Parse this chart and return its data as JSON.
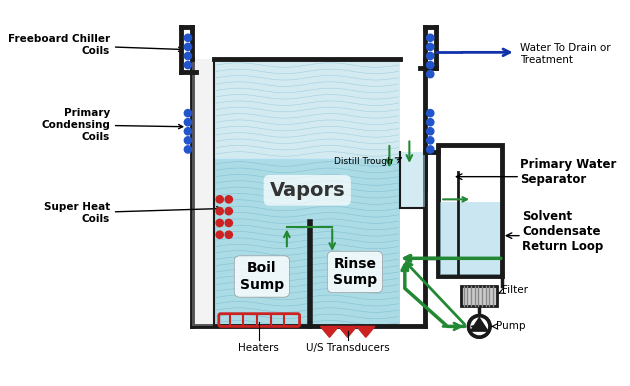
{
  "bg_color": "#ffffff",
  "vapor_fill_color": "#b8dde8",
  "vapor_fill_alpha": 0.55,
  "liquid_fill_color": "#7ec8d8",
  "liquid_fill_alpha": 0.7,
  "separator_fill_color": "#a8d8e8",
  "wall_color": "#1a1a1a",
  "wall_lw": 3.5,
  "blue_dot_color": "#2255cc",
  "red_dot_color": "#cc2222",
  "green_color": "#228833",
  "blue_arrow_color": "#1133aa",
  "title": "",
  "labels": {
    "freeboard": "Freeboard Chiller\nCoils",
    "primary_condensing": "Primary\nCondensing\nCoils",
    "super_heat": "Super Heat\nCoils",
    "vapors": "Vapors",
    "boil_sump": "Boil\nSump",
    "rinse_sump": "Rinse\nSump",
    "heaters": "Heaters",
    "us_transducers": "U/S Transducers",
    "distill_trough": "Distill Trough",
    "primary_water_sep": "Primary Water\nSeparator",
    "water_to_drain": "Water To Drain or\nTreatment",
    "solvent_condensate": "Solvent\nCondensate\nReturn Loop",
    "filter": "Filter",
    "pump": "Pump"
  }
}
